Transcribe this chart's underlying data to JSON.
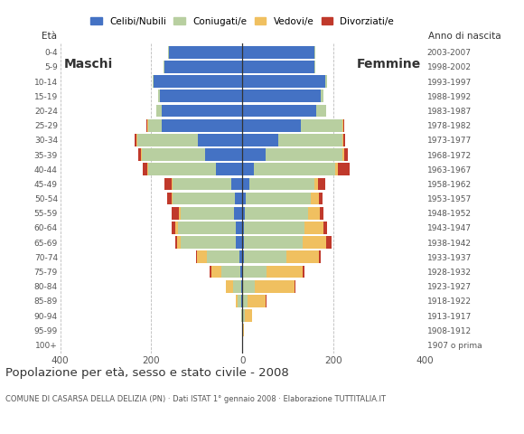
{
  "age_groups": [
    "100+",
    "95-99",
    "90-94",
    "85-89",
    "80-84",
    "75-79",
    "70-74",
    "65-69",
    "60-64",
    "55-59",
    "50-54",
    "45-49",
    "40-44",
    "35-39",
    "30-34",
    "25-29",
    "20-24",
    "15-19",
    "10-14",
    "5-9",
    "0-4"
  ],
  "birth_years": [
    "1907 o prima",
    "1908-1912",
    "1913-1917",
    "1918-1922",
    "1923-1927",
    "1928-1932",
    "1933-1937",
    "1938-1942",
    "1943-1947",
    "1948-1952",
    "1953-1957",
    "1958-1962",
    "1963-1967",
    "1968-1972",
    "1973-1977",
    "1978-1982",
    "1983-1987",
    "1988-1992",
    "1993-1997",
    "1998-2002",
    "2003-2007"
  ],
  "males": {
    "celibi": [
      0,
      0,
      0,
      2,
      2,
      4,
      6,
      14,
      14,
      18,
      16,
      25,
      58,
      82,
      98,
      178,
      178,
      182,
      195,
      172,
      162
    ],
    "coniugati": [
      0,
      0,
      2,
      8,
      18,
      42,
      72,
      122,
      128,
      118,
      138,
      128,
      148,
      138,
      132,
      28,
      12,
      4,
      2,
      2,
      2
    ],
    "vedovi": [
      0,
      0,
      0,
      4,
      16,
      22,
      22,
      8,
      6,
      4,
      2,
      2,
      2,
      2,
      2,
      2,
      0,
      0,
      0,
      0,
      0
    ],
    "divorziati": [
      0,
      0,
      0,
      0,
      0,
      4,
      2,
      4,
      8,
      16,
      10,
      16,
      10,
      6,
      4,
      2,
      0,
      0,
      0,
      0,
      0
    ]
  },
  "females": {
    "nubili": [
      0,
      0,
      2,
      2,
      2,
      2,
      4,
      4,
      4,
      6,
      8,
      16,
      26,
      52,
      78,
      128,
      162,
      172,
      182,
      158,
      158
    ],
    "coniugate": [
      0,
      0,
      4,
      10,
      25,
      52,
      92,
      128,
      132,
      138,
      142,
      142,
      178,
      168,
      142,
      92,
      22,
      6,
      4,
      2,
      2
    ],
    "vedove": [
      0,
      4,
      16,
      40,
      88,
      78,
      72,
      52,
      42,
      26,
      18,
      8,
      6,
      4,
      2,
      2,
      0,
      0,
      0,
      0,
      0
    ],
    "divorziate": [
      0,
      0,
      0,
      2,
      2,
      4,
      4,
      12,
      8,
      8,
      8,
      16,
      26,
      8,
      4,
      2,
      0,
      0,
      0,
      0,
      0
    ]
  },
  "colors": {
    "celibi": "#4472c4",
    "coniugati": "#b8cfa0",
    "vedovi": "#f0c060",
    "divorziati": "#c0392b"
  },
  "xlim": 400,
  "title": "Popolazione per età, sesso e stato civile - 2008",
  "subtitle": "COMUNE DI CASARSA DELLA DELIZIA (PN) · Dati ISTAT 1° gennaio 2008 · Elaborazione TUTTITALIA.IT",
  "label_eta": "Età",
  "label_nascita": "Anno di nascita",
  "label_maschi": "Maschi",
  "label_femmine": "Femmine",
  "legend_labels": [
    "Celibi/Nubili",
    "Coniugati/e",
    "Vedovi/e",
    "Divorziati/e"
  ],
  "bg_color": "#ffffff"
}
